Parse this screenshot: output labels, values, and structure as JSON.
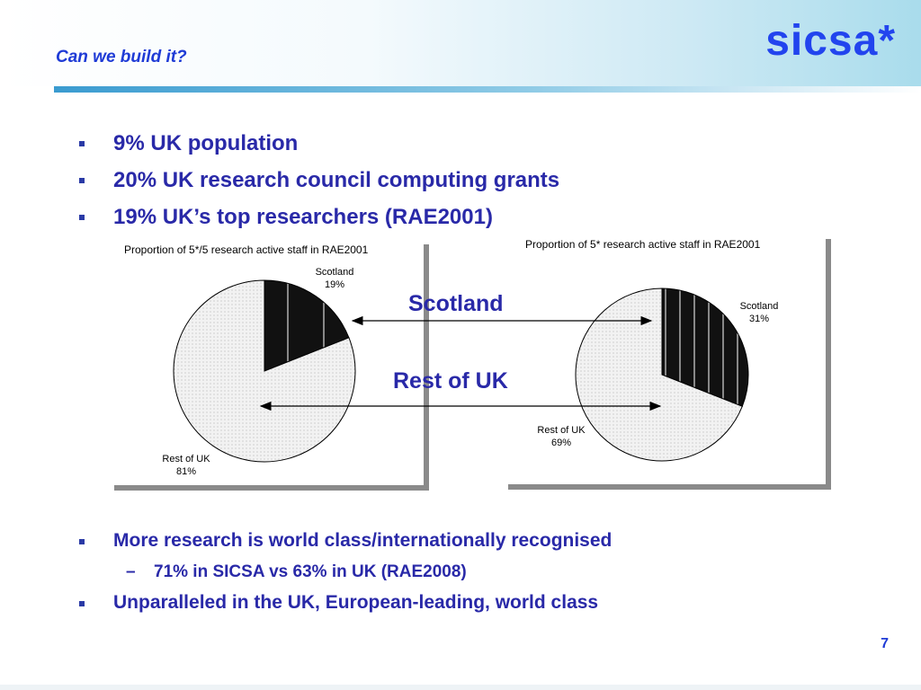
{
  "header": {
    "title": "Can we build it?",
    "logo": "sicsa*"
  },
  "bullets": [
    {
      "text": " 9%  UK population"
    },
    {
      "text": "20% UK research council computing grants"
    },
    {
      "text": "19% UK’s top researchers (RAE2001)"
    }
  ],
  "lower_bullets": [
    {
      "text": "More research is world class/internationally recognised"
    },
    {
      "sub": "71% in SICSA vs 63% in UK (RAE2008)"
    },
    {
      "text": "Unparalleled in the UK, European-leading, world class"
    }
  ],
  "sub_dash": "–",
  "arrow_labels": {
    "scotland": "Scotland",
    "rest": "Rest of UK"
  },
  "page_number": "7",
  "colors": {
    "text_blue": "#2929a8",
    "title_blue": "#1f3bd6",
    "scotland_fill": "#111111",
    "rest_fill": "#f2f2f2"
  },
  "chart_data": [
    {
      "type": "pie",
      "title": "Proportion of 5*/5 research active staff in RAE2001",
      "slices": [
        {
          "name": "Scotland",
          "value": 19,
          "label_name": "Scotland",
          "label_value": "19%"
        },
        {
          "name": "Rest of UK",
          "value": 81,
          "label_name": "Rest of UK",
          "label_value": "81%"
        }
      ]
    },
    {
      "type": "pie",
      "title": "Proportion of 5* research active staff in RAE2001",
      "slices": [
        {
          "name": "Scotland",
          "value": 31,
          "label_name": "Scotland",
          "label_value": "31%"
        },
        {
          "name": "Rest of UK",
          "value": 69,
          "label_name": "Rest of UK",
          "label_value": "69%"
        }
      ]
    }
  ]
}
